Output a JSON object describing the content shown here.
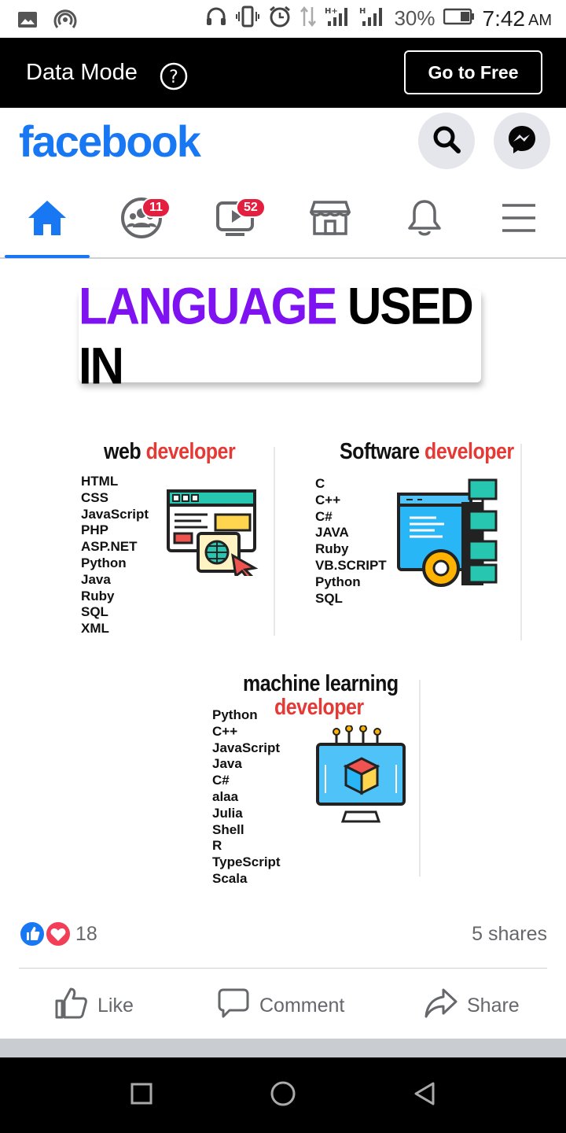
{
  "status_bar": {
    "battery": "30%",
    "time": "7:42",
    "ampm": "AM"
  },
  "data_mode": {
    "title": "Data Mode",
    "button": "Go to Free"
  },
  "header": {
    "logo": "facebook"
  },
  "nav": {
    "friends_badge": "11",
    "watch_badge": "52"
  },
  "post_image": {
    "banner_part1": "LANGUAGE",
    "banner_part2": "USED IN",
    "web": {
      "title_a": "web",
      "title_b": "developer",
      "languages": [
        "HTML",
        "CSS",
        "JavaScript",
        "PHP",
        "ASP.NET",
        "Python",
        "Java",
        "Ruby",
        "SQL",
        "XML"
      ]
    },
    "software": {
      "title_a": "Software",
      "title_b": "developer",
      "languages": [
        "C",
        "C++",
        "C#",
        "JAVA",
        "Ruby",
        "VB.SCRIPT",
        "Python",
        "SQL"
      ]
    },
    "ml": {
      "title_a": "machine learning",
      "title_b": "developer",
      "languages": [
        "Python",
        "C++",
        "JavaScript",
        "Java",
        "C#",
        "alaa",
        "Julia",
        "Shell",
        "R",
        "TypeScript",
        "Scala"
      ]
    }
  },
  "reactions": {
    "count": "18",
    "shares": "5 shares"
  },
  "actions": {
    "like": "Like",
    "comment": "Comment",
    "share": "Share"
  },
  "colors": {
    "fb_blue": "#1877f2",
    "badge_red": "#e41e3f",
    "banner_purple": "#7e12f0",
    "title_red": "#e53935"
  }
}
